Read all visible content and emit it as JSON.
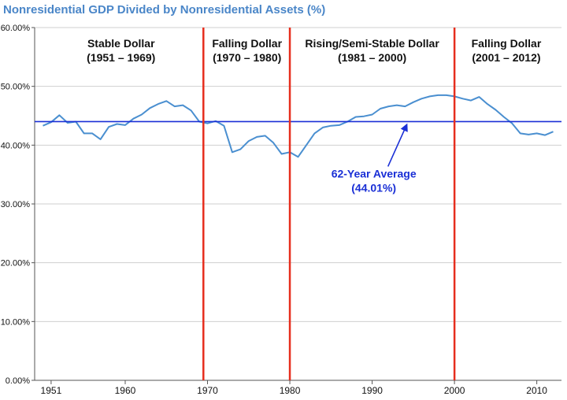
{
  "chart_data": {
    "type": "line",
    "title": "Nonresidential GDP Divided by Nonresidential Assets (%)",
    "xlabel": "",
    "ylabel": "",
    "xlim": [
      1949,
      2013
    ],
    "ylim": [
      0,
      60
    ],
    "y_ticks": [
      "0.00%",
      "10.00%",
      "20.00%",
      "30.00%",
      "40.00%",
      "50.00%",
      "60.00%"
    ],
    "y_tick_values": [
      0,
      10,
      20,
      30,
      40,
      50,
      60
    ],
    "x_ticks": [
      "1951",
      "1960",
      "1970",
      "1980",
      "1990",
      "2000",
      "2010"
    ],
    "x_tick_values": [
      1951,
      1960,
      1970,
      1980,
      1990,
      2000,
      2010
    ],
    "grid": "horizontal",
    "series": [
      {
        "color": "#4a8fd0",
        "x": [
          1950,
          1951,
          1952,
          1953,
          1954,
          1955,
          1956,
          1957,
          1958,
          1959,
          1960,
          1961,
          1962,
          1963,
          1964,
          1965,
          1966,
          1967,
          1968,
          1969,
          1970,
          1971,
          1972,
          1973,
          1974,
          1975,
          1976,
          1977,
          1978,
          1979,
          1980,
          1981,
          1982,
          1983,
          1984,
          1985,
          1986,
          1987,
          1988,
          1989,
          1990,
          1991,
          1992,
          1993,
          1994,
          1995,
          1996,
          1997,
          1998,
          1999,
          2000,
          2001,
          2002,
          2003,
          2004,
          2005,
          2006,
          2007,
          2008,
          2009,
          2010,
          2011,
          2012
        ],
        "values": [
          43.3,
          43.9,
          45.1,
          43.8,
          44.0,
          42.0,
          42.0,
          41.0,
          43.1,
          43.6,
          43.4,
          44.5,
          45.2,
          46.3,
          47.0,
          47.5,
          46.6,
          46.8,
          45.9,
          44.0,
          43.7,
          44.1,
          43.3,
          38.8,
          39.3,
          40.7,
          41.4,
          41.6,
          40.4,
          38.5,
          38.8,
          38.0,
          40.0,
          42.0,
          43.0,
          43.3,
          43.4,
          44.0,
          44.8,
          44.9,
          45.2,
          46.2,
          46.6,
          46.8,
          46.6,
          47.3,
          47.9,
          48.3,
          48.5,
          48.5,
          48.3,
          47.9,
          47.6,
          48.2,
          47.0,
          46.0,
          44.8,
          43.7,
          42.0,
          41.8,
          42.0,
          41.7,
          42.3
        ]
      },
      {
        "name": "62-Year Average",
        "color": "#1a2fd6",
        "type": "hline",
        "value": 44.01
      }
    ],
    "vertical_lines": [
      1969.5,
      1980,
      2000
    ],
    "vertical_line_color": "#e62e1e",
    "eras": [
      {
        "line1": "Stable Dollar",
        "line2": "(1951 – 1969)",
        "center_year": 1959.5
      },
      {
        "line1": "Falling Dollar",
        "line2": "(1970 – 1980)",
        "center_year": 1974.8
      },
      {
        "line1": "Rising/Semi-Stable Dollar",
        "line2": "(1981 – 2000)",
        "center_year": 1990
      },
      {
        "line1": "Falling Dollar",
        "line2": "(2001 – 2012)",
        "center_year": 2006.3
      }
    ],
    "annotation": {
      "line1": "62-Year Average",
      "line2": "(44.01%)",
      "text_year": 1990.2,
      "text_value": 34.5,
      "arrow_to_year": 1994.2,
      "arrow_to_value": 44.0
    }
  }
}
